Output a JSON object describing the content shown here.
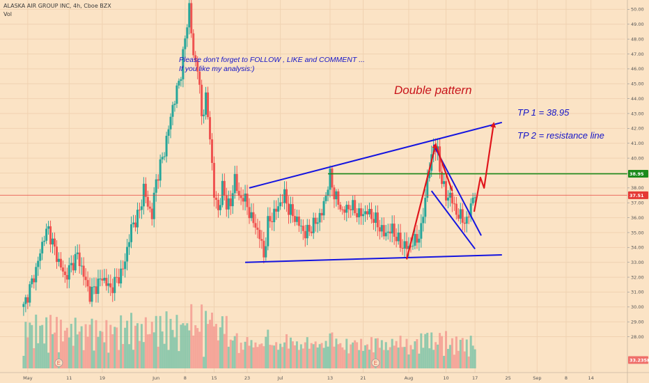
{
  "header": {
    "symbol_title": "ALASKA AIR GROUP INC, 4h, Cboe BZX",
    "volume_label": "Vol"
  },
  "annotations": {
    "note_line1": "Please don't forget  to FOLLOW , LIKE and COMMENT ...",
    "note_line2": "If you like my analysis:)",
    "pattern_title": "Double pattern",
    "tp1": "TP 1 = 38.95",
    "tp2": "TP 2 =  resistance line"
  },
  "price_labels": {
    "target": "38.95",
    "last": "37.51",
    "volume_last": "33.235K"
  },
  "event_marker": "E",
  "colors": {
    "background": "#fbe3c5",
    "up": "#26a69a",
    "down": "#ef5350",
    "up_volume": "#7fc4a8",
    "down_volume": "#f39c92",
    "trendline": "#1414e0",
    "target_line": "#1b8a1b",
    "arrow": "#e0161c",
    "last_price_line": "#e53935",
    "annotation_blue": "#1414c8",
    "annotation_red": "#c8141a"
  },
  "chart_data": {
    "type": "candlestick",
    "timeframe": "4h",
    "ylim": [
      27.3,
      50.3
    ],
    "yticks": [
      28.0,
      29.0,
      30.0,
      31.0,
      32.0,
      33.0,
      34.0,
      35.0,
      36.0,
      37.0,
      38.0,
      39.0,
      40.0,
      41.0,
      42.0,
      43.0,
      44.0,
      45.0,
      46.0,
      47.0,
      48.0,
      49.0,
      50.0
    ],
    "ytick_labels": [
      "28.00",
      "29.00",
      "30.00",
      "31.00",
      "32.00",
      "33.00",
      "34.00",
      "35.00",
      "36.00",
      "37.00",
      "38.00",
      "39.00",
      "40.00",
      "41.00",
      "42.00",
      "43.00",
      "44.00",
      "45.00",
      "46.00",
      "47.00",
      "48.00",
      "49.00",
      "50.00"
    ],
    "x_ticks": [
      {
        "label": "May",
        "day": 1
      },
      {
        "label": "11",
        "day": 11
      },
      {
        "label": "19",
        "day": 19
      },
      {
        "label": "Jun",
        "day": 32
      },
      {
        "label": "8",
        "day": 39
      },
      {
        "label": "15",
        "day": 46
      },
      {
        "label": "23",
        "day": 54
      },
      {
        "label": "Jul",
        "day": 62
      },
      {
        "label": "13",
        "day": 74
      },
      {
        "label": "21",
        "day": 82
      },
      {
        "label": "Aug",
        "day": 93
      },
      {
        "label": "10",
        "day": 102
      },
      {
        "label": "17",
        "day": 109
      },
      {
        "label": "25",
        "day": 117
      },
      {
        "label": "Sep",
        "day": 124
      },
      {
        "label": "8",
        "day": 131
      },
      {
        "label": "14",
        "day": 137
      }
    ],
    "xlim": [
      -5.7,
      145.3
    ],
    "anchors": [
      [
        0,
        30.0
      ],
      [
        3,
        32.5
      ],
      [
        5,
        34.8
      ],
      [
        6,
        35.2
      ],
      [
        8,
        33.4
      ],
      [
        10,
        32.0
      ],
      [
        13,
        33.5
      ],
      [
        16,
        30.8
      ],
      [
        19,
        32.0
      ],
      [
        21,
        31.2
      ],
      [
        24,
        32.5
      ],
      [
        26,
        35.3
      ],
      [
        28,
        36.4
      ],
      [
        29,
        38.0
      ],
      [
        30,
        36.8
      ],
      [
        31,
        36.2
      ],
      [
        32,
        38.5
      ],
      [
        34,
        40.5
      ],
      [
        36,
        43.5
      ],
      [
        37,
        44.5
      ],
      [
        38,
        45.8
      ],
      [
        39,
        48.0
      ],
      [
        40,
        50.2
      ],
      [
        41,
        46.8
      ],
      [
        42,
        46.2
      ],
      [
        43,
        42.8
      ],
      [
        44,
        44.0
      ],
      [
        45,
        41.5
      ],
      [
        46,
        37.5
      ],
      [
        47,
        36.5
      ],
      [
        48,
        38.0
      ],
      [
        49,
        37.0
      ],
      [
        50,
        36.8
      ],
      [
        51,
        38.8
      ],
      [
        52,
        37.2
      ],
      [
        53,
        37.5
      ],
      [
        55,
        36.0
      ],
      [
        57,
        34.8
      ],
      [
        58,
        33.4
      ],
      [
        59,
        35.6
      ],
      [
        61,
        36.5
      ],
      [
        63,
        37.5
      ],
      [
        64,
        36.6
      ],
      [
        66,
        35.8
      ],
      [
        68,
        34.9
      ],
      [
        70,
        35.5
      ],
      [
        72,
        36.3
      ],
      [
        74,
        38.8
      ],
      [
        75,
        37.6
      ],
      [
        77,
        36.4
      ],
      [
        79,
        36.8
      ],
      [
        81,
        36.2
      ],
      [
        83,
        36.4
      ],
      [
        85,
        35.8
      ],
      [
        87,
        34.9
      ],
      [
        89,
        35.2
      ],
      [
        91,
        34.2
      ],
      [
        93,
        34.0
      ],
      [
        95,
        34.6
      ],
      [
        96,
        35.1
      ],
      [
        97,
        37.5
      ],
      [
        98,
        39.3
      ],
      [
        99,
        40.9
      ],
      [
        100,
        40.3
      ],
      [
        101,
        38.5
      ],
      [
        102,
        37.4
      ],
      [
        103,
        37.5
      ],
      [
        104,
        36.7
      ],
      [
        105,
        36.1
      ],
      [
        106,
        36.0
      ],
      [
        107,
        35.6
      ],
      [
        108,
        37.0
      ],
      [
        109,
        37.5
      ]
    ],
    "lines": [
      {
        "name": "upper-resistance",
        "from": [
          54.5,
          38.0
        ],
        "to": [
          115.5,
          42.4
        ]
      },
      {
        "name": "lower-support",
        "from": [
          53.5,
          33.0
        ],
        "to": [
          115.5,
          33.5
        ]
      },
      {
        "name": "flag-upper",
        "from": [
          99,
          40.9
        ],
        "to": [
          110.5,
          34.8
        ]
      },
      {
        "name": "flag-lower",
        "from": [
          98.5,
          37.8
        ],
        "to": [
          109,
          33.9
        ]
      }
    ],
    "horizontal_levels": [
      {
        "name": "target-level",
        "value": 38.95,
        "from_day": 73.5
      },
      {
        "name": "last-price",
        "value": 37.51,
        "from_day": -6
      }
    ],
    "arrows": [
      {
        "name": "rise-arrow",
        "points": [
          [
            92.5,
            33.2
          ],
          [
            99.5,
            40.9
          ]
        ],
        "head": true
      },
      {
        "name": "drop-arrow",
        "points": [
          [
            99.5,
            40.9
          ],
          [
            103.5,
            37.8
          ]
        ]
      },
      {
        "name": "projection-arrow",
        "points": [
          [
            108.8,
            36.4
          ],
          [
            110.3,
            38.7
          ],
          [
            111.2,
            38.0
          ],
          [
            113.5,
            42.3
          ]
        ],
        "head": true
      }
    ]
  }
}
